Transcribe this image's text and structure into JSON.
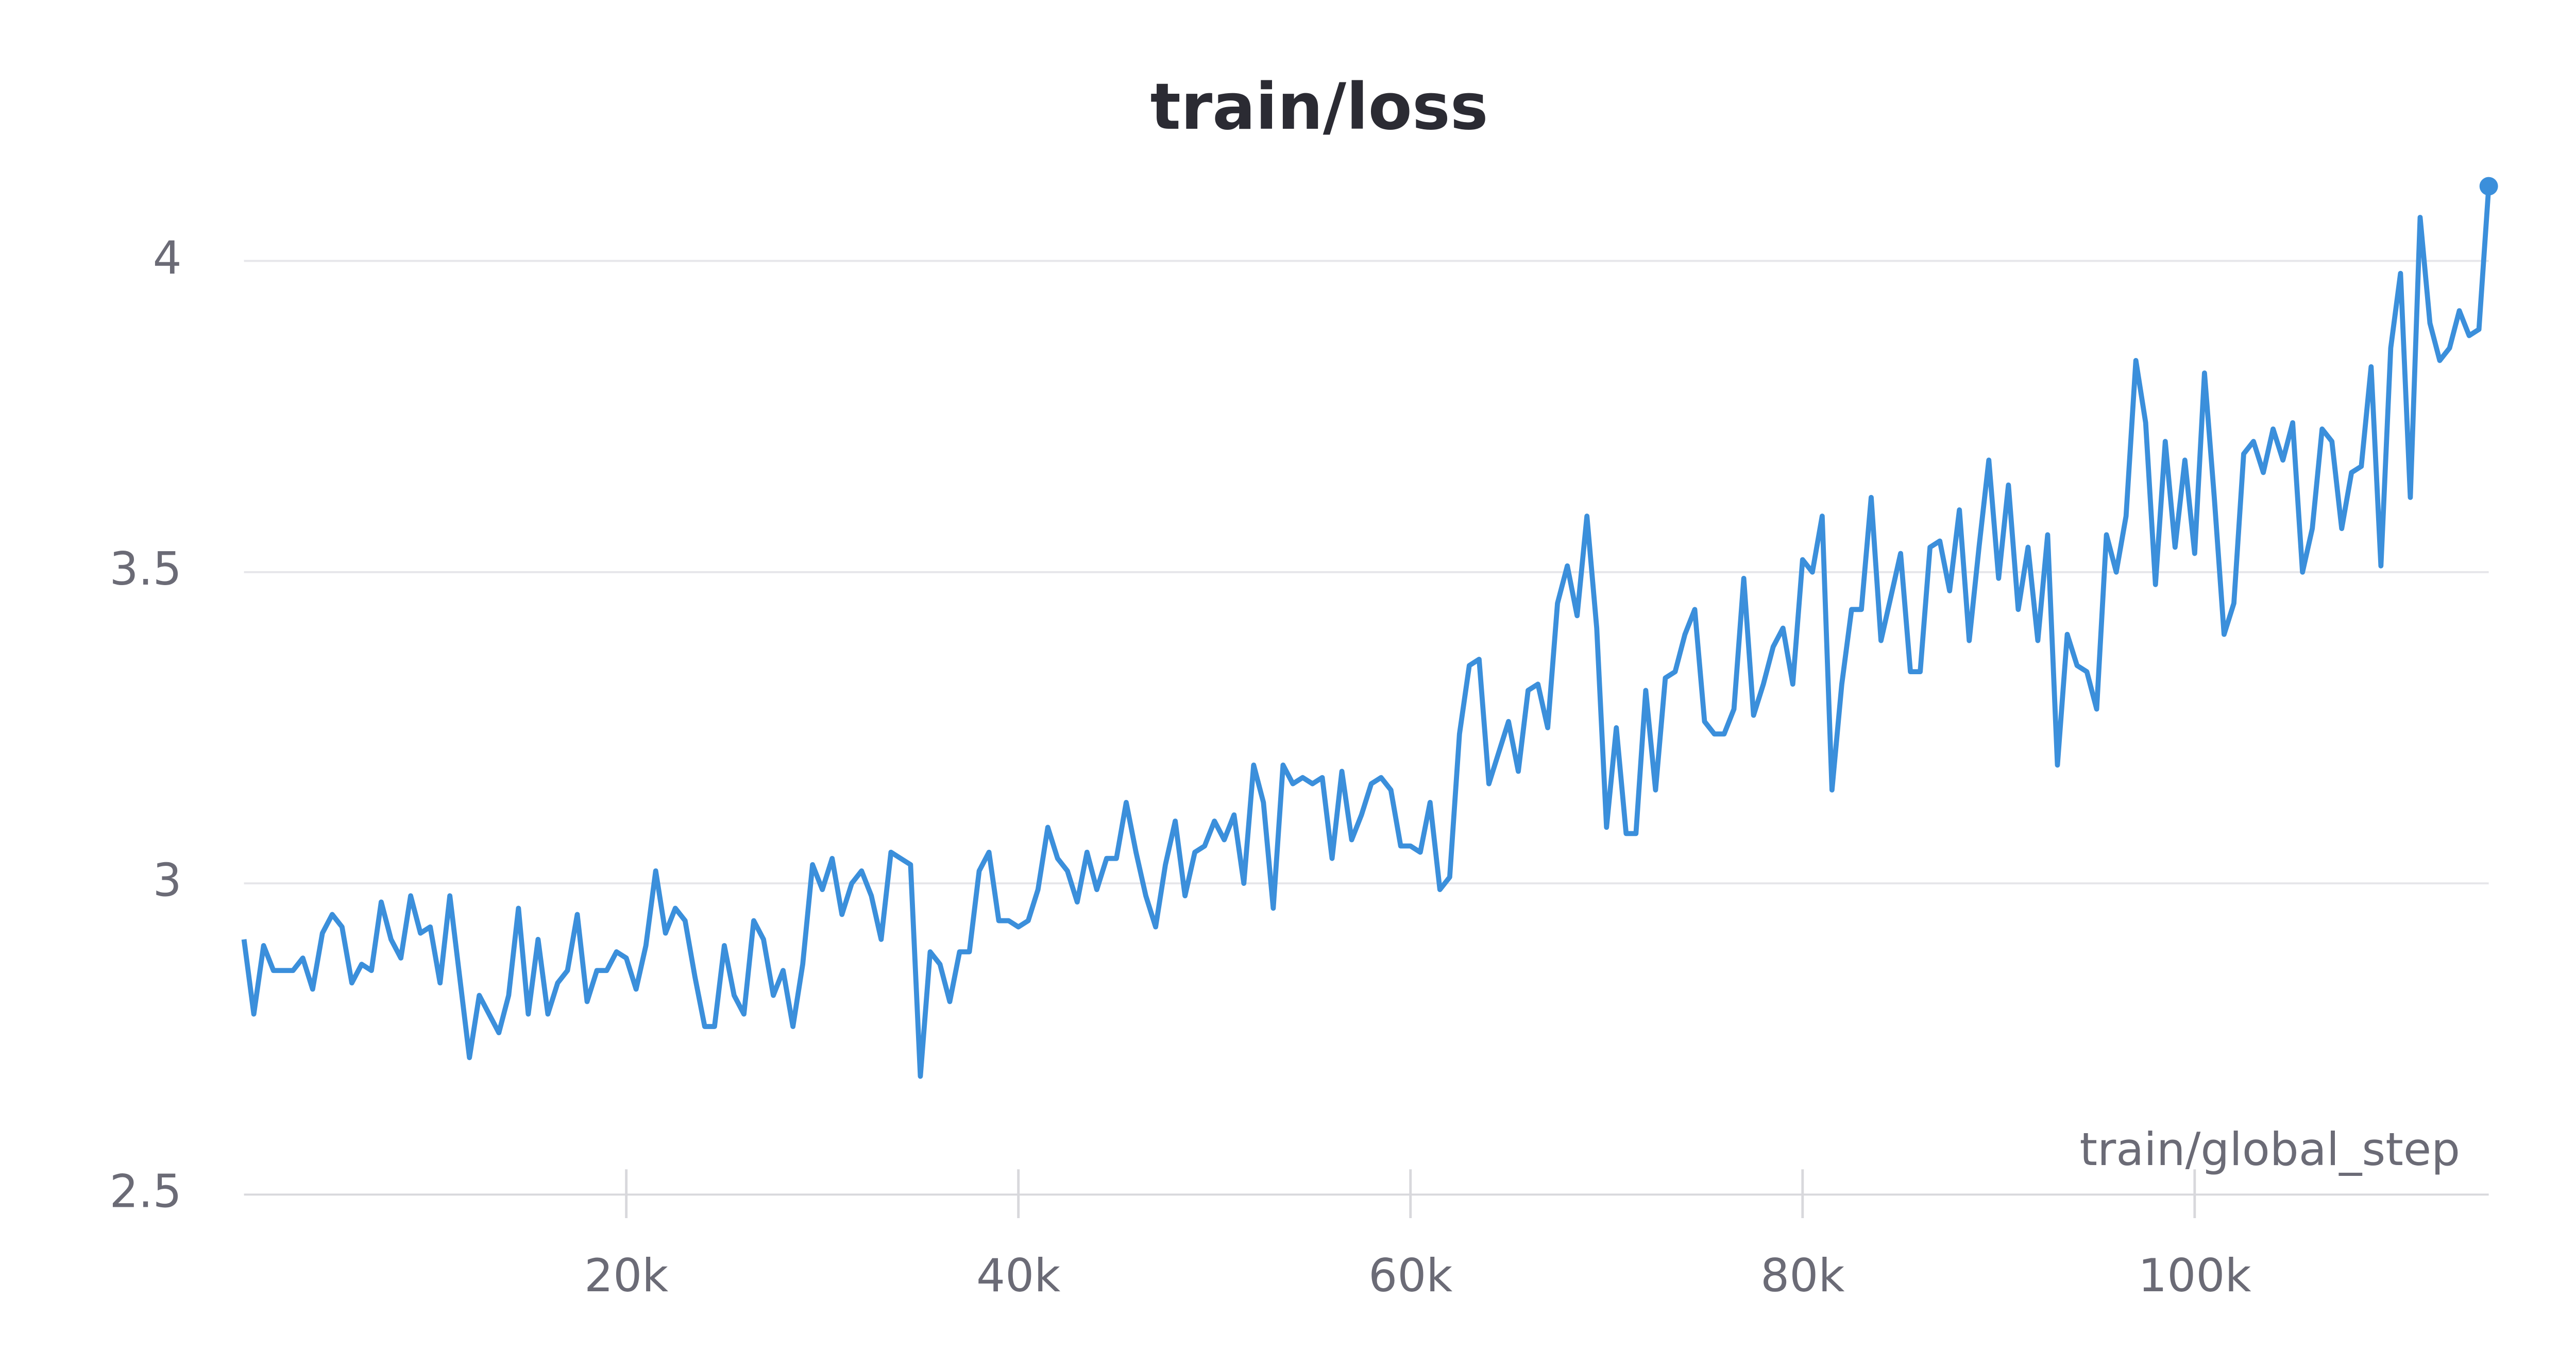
{
  "chart_data": {
    "type": "line",
    "title": "train/loss",
    "x_label": "train/global_step",
    "color": "#3b8fdb",
    "grid": true,
    "end_marker": true,
    "xlim": [
      500,
      115000
    ],
    "xticks": [
      {
        "value": 20000,
        "label": "20k"
      },
      {
        "value": 40000,
        "label": "40k"
      },
      {
        "value": 60000,
        "label": "60k"
      },
      {
        "value": 80000,
        "label": "80k"
      },
      {
        "value": 100000,
        "label": "100k"
      }
    ],
    "ylim": [
      2.5,
      4.15
    ],
    "yticks": [
      2.5,
      3,
      3.5,
      4
    ],
    "x": [
      500,
      1000,
      1500,
      2000,
      2500,
      3000,
      3500,
      4000,
      4500,
      5000,
      5500,
      6000,
      6500,
      7000,
      7500,
      8000,
      8500,
      9000,
      9500,
      10000,
      10500,
      11000,
      11500,
      12000,
      12500,
      13000,
      13500,
      14000,
      14500,
      15000,
      15500,
      16000,
      16500,
      17000,
      17500,
      18000,
      18500,
      19000,
      19500,
      20000,
      20500,
      21000,
      21500,
      22000,
      22500,
      23000,
      23500,
      24000,
      24500,
      25000,
      25500,
      26000,
      26500,
      27000,
      27500,
      28000,
      28500,
      29000,
      29500,
      30000,
      30500,
      31000,
      31500,
      32000,
      32500,
      33000,
      33500,
      34000,
      34500,
      35000,
      35500,
      36000,
      36500,
      37000,
      37500,
      38000,
      38500,
      39000,
      39500,
      40000,
      40500,
      41000,
      41500,
      42000,
      42500,
      43000,
      43500,
      44000,
      44500,
      45000,
      45500,
      46000,
      46500,
      47000,
      47500,
      48000,
      48500,
      49000,
      49500,
      50000,
      50500,
      51000,
      51500,
      52000,
      52500,
      53000,
      53500,
      54000,
      54500,
      55000,
      55500,
      56000,
      56500,
      57000,
      57500,
      58000,
      58500,
      59000,
      59500,
      60000,
      60500,
      61000,
      61500,
      62000,
      62500,
      63000,
      63500,
      64000,
      64500,
      65000,
      65500,
      66000,
      66500,
      67000,
      67500,
      68000,
      68500,
      69000,
      69500,
      70000,
      70500,
      71000,
      71500,
      72000,
      72500,
      73000,
      73500,
      74000,
      74500,
      75000,
      75500,
      76000,
      76500,
      77000,
      77500,
      78000,
      78500,
      79000,
      79500,
      80000,
      80500,
      81000,
      81500,
      82000,
      82500,
      83000,
      83500,
      84000,
      84500,
      85000,
      85500,
      86000,
      86500,
      87000,
      87500,
      88000,
      88500,
      89000,
      89500,
      90000,
      90500,
      91000,
      91500,
      92000,
      92500,
      93000,
      93500,
      94000,
      94500,
      95000,
      95500,
      96000,
      96500,
      97000,
      97500,
      98000,
      98500,
      99000,
      99500,
      100000,
      100500,
      101000,
      101500,
      102000,
      102500,
      103000,
      103500,
      104000,
      104500,
      105000,
      105500,
      106000,
      106500,
      107000,
      107500,
      108000,
      108500,
      109000,
      109500,
      110000,
      110500,
      111000,
      111500,
      112000,
      112500,
      113000,
      113500,
      114000,
      114500,
      115000
    ],
    "values": [
      2.91,
      2.79,
      2.9,
      2.86,
      2.86,
      2.86,
      2.88,
      2.83,
      2.92,
      2.95,
      2.93,
      2.84,
      2.87,
      2.86,
      2.97,
      2.91,
      2.88,
      2.98,
      2.92,
      2.93,
      2.84,
      2.98,
      2.85,
      2.72,
      2.82,
      2.79,
      2.76,
      2.82,
      2.96,
      2.79,
      2.91,
      2.79,
      2.84,
      2.86,
      2.95,
      2.81,
      2.86,
      2.86,
      2.89,
      2.88,
      2.83,
      2.9,
      3.02,
      2.92,
      2.96,
      2.94,
      2.85,
      2.77,
      2.77,
      2.9,
      2.82,
      2.79,
      2.94,
      2.91,
      2.82,
      2.86,
      2.77,
      2.87,
      3.03,
      2.99,
      3.04,
      2.95,
      3.0,
      3.02,
      2.98,
      2.91,
      3.05,
      3.04,
      3.03,
      2.69,
      2.89,
      2.87,
      2.81,
      2.89,
      2.89,
      3.02,
      3.05,
      2.94,
      2.94,
      2.93,
      2.94,
      2.99,
      3.09,
      3.04,
      3.02,
      2.97,
      3.05,
      2.99,
      3.04,
      3.04,
      3.13,
      3.05,
      2.98,
      2.93,
      3.03,
      3.1,
      2.98,
      3.05,
      3.06,
      3.1,
      3.07,
      3.11,
      3.0,
      3.19,
      3.13,
      2.96,
      3.19,
      3.16,
      3.17,
      3.16,
      3.17,
      3.04,
      3.18,
      3.07,
      3.11,
      3.16,
      3.17,
      3.15,
      3.06,
      3.06,
      3.05,
      3.13,
      2.99,
      3.01,
      3.24,
      3.35,
      3.36,
      3.16,
      3.21,
      3.26,
      3.18,
      3.31,
      3.32,
      3.25,
      3.45,
      3.51,
      3.43,
      3.59,
      3.41,
      3.09,
      3.25,
      3.08,
      3.08,
      3.31,
      3.15,
      3.33,
      3.34,
      3.4,
      3.44,
      3.26,
      3.24,
      3.24,
      3.28,
      3.49,
      3.27,
      3.32,
      3.38,
      3.41,
      3.32,
      3.52,
      3.5,
      3.59,
      3.15,
      3.32,
      3.44,
      3.44,
      3.62,
      3.39,
      3.46,
      3.53,
      3.34,
      3.34,
      3.54,
      3.55,
      3.47,
      3.6,
      3.39,
      3.54,
      3.68,
      3.49,
      3.64,
      3.44,
      3.54,
      3.39,
      3.56,
      3.19,
      3.4,
      3.35,
      3.34,
      3.28,
      3.56,
      3.5,
      3.59,
      3.84,
      3.74,
      3.48,
      3.71,
      3.54,
      3.68,
      3.53,
      3.82,
      3.62,
      3.4,
      3.45,
      3.69,
      3.71,
      3.66,
      3.73,
      3.68,
      3.74,
      3.5,
      3.57,
      3.73,
      3.71,
      3.57,
      3.66,
      3.67,
      3.83,
      3.51,
      3.86,
      3.98,
      3.62,
      4.07,
      3.9,
      3.84,
      3.86,
      3.92,
      3.88,
      3.89,
      4.12
    ]
  }
}
